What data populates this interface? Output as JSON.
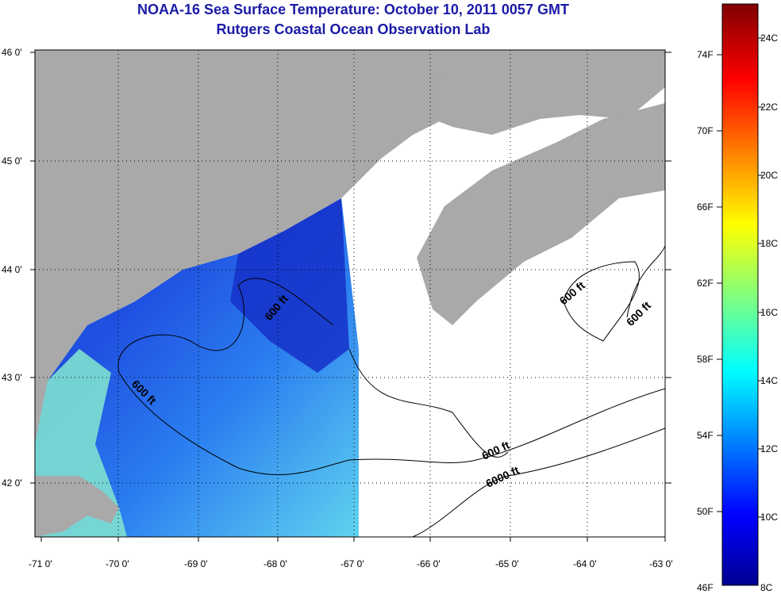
{
  "title": {
    "line1": "NOAA-16 Sea Surface Temperature:  October 10, 2011 0057 GMT",
    "line2": "Rutgers Coastal Ocean Observation Lab"
  },
  "map": {
    "latitude_ticks": [
      "46 0'",
      "45 0'",
      "44 0'",
      "43 0'",
      "42 0'"
    ],
    "longitude_ticks": [
      "-71 0'",
      "-70 0'",
      "-69 0'",
      "-68 0'",
      "-67 0'",
      "-66 0'",
      "-65 0'",
      "-64 0'",
      "-63 0'"
    ],
    "contour_labels": [
      "600 ft",
      "600 ft",
      "600 ft",
      "600 ft",
      "600 ft",
      "6000 ft"
    ],
    "colors": {
      "land": "#a9a9a9",
      "no_data": "#ffffff",
      "grid": "#000000"
    }
  },
  "colorbar": {
    "fahrenheit_labels": [
      "74F",
      "70F",
      "66F",
      "62F",
      "58F",
      "54F",
      "50F",
      "46F"
    ],
    "celsius_labels": [
      "24C",
      "22C",
      "20C",
      "18C",
      "16C",
      "14C",
      "12C",
      "10C",
      "8C"
    ],
    "range_c": [
      8,
      25
    ],
    "colormap": "jet"
  }
}
